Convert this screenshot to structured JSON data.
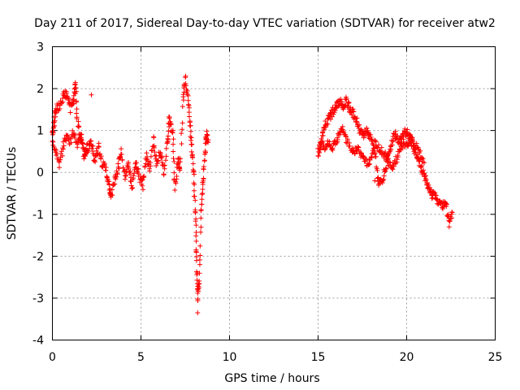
{
  "chart_data": {
    "type": "scatter",
    "title": "Day 211 of 2017, Sidereal Day-to-day VTEC variation (SDTVAR) for receiver atw2",
    "xlabel": "GPS time / hours",
    "ylabel": "SDTVAR / TECUs",
    "xlim": [
      0,
      25
    ],
    "ylim": [
      -4,
      3
    ],
    "xticks": [
      "0",
      "5",
      "10",
      "15",
      "20",
      "25"
    ],
    "yticks": [
      "-4",
      "-3",
      "-2",
      "-1",
      "0",
      "1",
      "2",
      "3"
    ],
    "grid": true,
    "marker": "+",
    "color": "#ff0000",
    "series": [
      {
        "name": "SDTVAR",
        "trace": [
          [
            0.0,
            0.9
          ],
          [
            0.1,
            1.2
          ],
          [
            0.2,
            1.5
          ],
          [
            0.4,
            1.6
          ],
          [
            0.6,
            1.8
          ],
          [
            0.8,
            1.9
          ],
          [
            1.0,
            1.5
          ],
          [
            1.2,
            1.7
          ],
          [
            1.3,
            2.2
          ],
          [
            1.4,
            1.2
          ],
          [
            1.6,
            0.8
          ],
          [
            1.8,
            0.5
          ],
          [
            2.0,
            0.6
          ],
          [
            2.2,
            0.7
          ],
          [
            2.4,
            0.3
          ],
          [
            2.6,
            0.6
          ],
          [
            2.8,
            0.2
          ],
          [
            3.0,
            0.1
          ],
          [
            3.2,
            -0.3
          ],
          [
            3.3,
            -0.6
          ],
          [
            3.5,
            -0.2
          ],
          [
            3.7,
            0.1
          ],
          [
            3.9,
            0.5
          ],
          [
            4.1,
            -0.2
          ],
          [
            4.3,
            0.2
          ],
          [
            4.5,
            -0.4
          ],
          [
            4.7,
            0.3
          ],
          [
            4.9,
            -0.1
          ],
          [
            5.1,
            -0.3
          ],
          [
            5.3,
            0.4
          ],
          [
            5.5,
            0.1
          ],
          [
            5.7,
            0.8
          ],
          [
            5.9,
            0.2
          ],
          [
            6.1,
            0.5
          ],
          [
            6.3,
            0.0
          ],
          [
            6.5,
            0.8
          ],
          [
            6.6,
            1.3
          ],
          [
            6.8,
            0.9
          ],
          [
            6.9,
            -0.4
          ],
          [
            7.1,
            0.3
          ],
          [
            7.2,
            0.0
          ],
          [
            7.4,
            1.9
          ],
          [
            7.5,
            2.2
          ],
          [
            7.7,
            1.6
          ],
          [
            7.8,
            1.0
          ],
          [
            7.9,
            0.4
          ],
          [
            8.0,
            -0.3
          ],
          [
            8.1,
            -1.2
          ],
          [
            8.15,
            -2.2
          ],
          [
            8.2,
            -3.0
          ],
          [
            8.3,
            -2.6
          ],
          [
            8.4,
            -1.0
          ],
          [
            8.5,
            -0.3
          ],
          [
            8.6,
            0.4
          ],
          [
            8.7,
            0.9
          ],
          [
            8.8,
            0.7
          ],
          [
            15.0,
            0.4
          ],
          [
            15.2,
            0.8
          ],
          [
            15.4,
            1.1
          ],
          [
            15.6,
            1.3
          ],
          [
            15.8,
            1.4
          ],
          [
            16.0,
            1.6
          ],
          [
            16.2,
            1.7
          ],
          [
            16.4,
            1.6
          ],
          [
            16.6,
            1.7
          ],
          [
            16.8,
            1.5
          ],
          [
            17.0,
            1.4
          ],
          [
            17.2,
            1.2
          ],
          [
            17.4,
            1.0
          ],
          [
            17.6,
            0.9
          ],
          [
            17.8,
            1.0
          ],
          [
            18.0,
            0.8
          ],
          [
            18.2,
            0.5
          ],
          [
            18.4,
            -0.2
          ],
          [
            18.6,
            -0.3
          ],
          [
            18.8,
            0.1
          ],
          [
            19.0,
            0.5
          ],
          [
            19.2,
            0.8
          ],
          [
            19.4,
            0.9
          ],
          [
            19.6,
            0.7
          ],
          [
            19.8,
            0.9
          ],
          [
            20.0,
            1.0
          ],
          [
            20.2,
            0.8
          ],
          [
            20.4,
            0.6
          ],
          [
            20.6,
            0.4
          ],
          [
            20.8,
            0.1
          ],
          [
            21.0,
            -0.1
          ],
          [
            21.2,
            -0.3
          ],
          [
            21.4,
            -0.5
          ],
          [
            21.6,
            -0.6
          ],
          [
            21.8,
            -0.7
          ],
          [
            22.0,
            -0.8
          ],
          [
            22.2,
            -0.7
          ],
          [
            22.4,
            -1.2
          ],
          [
            22.6,
            -0.9
          ]
        ],
        "secondary_trace": [
          [
            0.0,
            0.7
          ],
          [
            0.2,
            0.5
          ],
          [
            0.4,
            0.2
          ],
          [
            0.6,
            0.6
          ],
          [
            0.8,
            0.9
          ],
          [
            1.0,
            0.7
          ],
          [
            1.2,
            1.0
          ],
          [
            1.4,
            0.6
          ],
          [
            1.6,
            0.9
          ],
          [
            1.8,
            0.4
          ],
          [
            2.0,
            0.5
          ],
          [
            15.0,
            0.5
          ],
          [
            15.2,
            0.7
          ],
          [
            15.4,
            0.6
          ],
          [
            15.6,
            0.7
          ],
          [
            15.8,
            0.6
          ],
          [
            16.0,
            0.7
          ],
          [
            16.2,
            0.9
          ],
          [
            16.4,
            1.1
          ],
          [
            16.6,
            0.8
          ],
          [
            16.8,
            0.6
          ],
          [
            17.0,
            0.5
          ],
          [
            17.2,
            0.6
          ],
          [
            17.4,
            0.4
          ],
          [
            17.6,
            0.3
          ],
          [
            17.8,
            0.2
          ],
          [
            18.0,
            0.3
          ],
          [
            18.2,
            0.7
          ],
          [
            18.4,
            0.6
          ],
          [
            18.6,
            0.5
          ],
          [
            18.8,
            0.4
          ],
          [
            19.0,
            0.2
          ],
          [
            19.2,
            0.1
          ],
          [
            19.4,
            0.3
          ],
          [
            19.6,
            0.5
          ],
          [
            19.8,
            0.7
          ],
          [
            20.0,
            0.6
          ],
          [
            20.2,
            0.8
          ],
          [
            20.4,
            0.7
          ],
          [
            20.6,
            0.6
          ],
          [
            20.8,
            0.4
          ],
          [
            21.0,
            0.3
          ]
        ],
        "isolated": [
          [
            2.2,
            1.85
          ],
          [
            18.2,
            -0.2
          ],
          [
            22.4,
            -1.3
          ],
          [
            8.2,
            -3.35
          ]
        ]
      }
    ]
  }
}
